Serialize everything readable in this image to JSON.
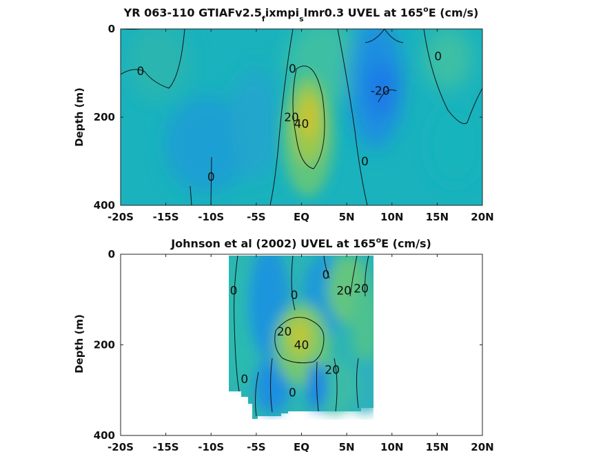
{
  "chart_data": [
    {
      "type": "heatmap",
      "title": "YR 063-110 GTIAFv2.5_f ixmpi_s lmr0.3 UVEL at 165°E (cm/s)",
      "title_parts": [
        "YR 063-110 GTIAFv2.5",
        "f",
        "ixmpi",
        "s",
        "lmr0.3 UVEL at 165",
        "o",
        "E (cm/s)"
      ],
      "xlabel": "",
      "ylabel": "Depth (m)",
      "xlim": [
        -20,
        20
      ],
      "ylim": [
        400,
        0
      ],
      "xticks": [
        "-20S",
        "-15S",
        "-10S",
        "-5S",
        "EQ",
        "5N",
        "10N",
        "15N",
        "20N"
      ],
      "yticks": [
        "0",
        "200",
        "400"
      ],
      "ytick_values": [
        0,
        200,
        400
      ],
      "contour_labels": [
        {
          "text": "0",
          "x": -17.8,
          "y": 95
        },
        {
          "text": "0",
          "x": -1.0,
          "y": 90
        },
        {
          "text": "0",
          "x": 15.1,
          "y": 62
        },
        {
          "text": "-20",
          "x": 8.7,
          "y": 140
        },
        {
          "text": "20",
          "x": -1.1,
          "y": 200
        },
        {
          "text": "40",
          "x": 0.0,
          "y": 215
        },
        {
          "text": "0",
          "x": 7.0,
          "y": 300
        },
        {
          "text": "0",
          "x": -10.0,
          "y": 335
        }
      ],
      "colormap": "parula",
      "grid": false
    },
    {
      "type": "heatmap",
      "title": "Johnson et al (2002) UVEL at 165°E (cm/s)",
      "title_parts": [
        "Johnson et al (2002) UVEL at 165",
        "o",
        "E (cm/s)"
      ],
      "xlabel": "",
      "ylabel": "Depth (m)",
      "xlim": [
        -20,
        20
      ],
      "ylim": [
        400,
        0
      ],
      "xticks": [
        "-20S",
        "-15S",
        "-10S",
        "-5S",
        "EQ",
        "5N",
        "10N",
        "15N",
        "20N"
      ],
      "yticks": [
        "0",
        "200",
        "400"
      ],
      "ytick_values": [
        0,
        200,
        400
      ],
      "data_extent": {
        "x": [
          -8,
          8
        ],
        "y": [
          0,
          365
        ]
      },
      "contour_labels": [
        {
          "text": "0",
          "x": -7.5,
          "y": 80
        },
        {
          "text": "0",
          "x": -0.8,
          "y": 90
        },
        {
          "text": "0",
          "x": 2.7,
          "y": 45
        },
        {
          "text": "20",
          "x": 4.7,
          "y": 80
        },
        {
          "text": "20",
          "x": 6.6,
          "y": 75
        },
        {
          "text": "20",
          "x": -1.9,
          "y": 170
        },
        {
          "text": "40",
          "x": 0.0,
          "y": 200
        },
        {
          "text": "20",
          "x": 3.4,
          "y": 255
        },
        {
          "text": "0",
          "x": -6.3,
          "y": 275
        },
        {
          "text": "0",
          "x": -1.0,
          "y": 305
        }
      ],
      "colormap": "parula",
      "grid": false
    }
  ]
}
